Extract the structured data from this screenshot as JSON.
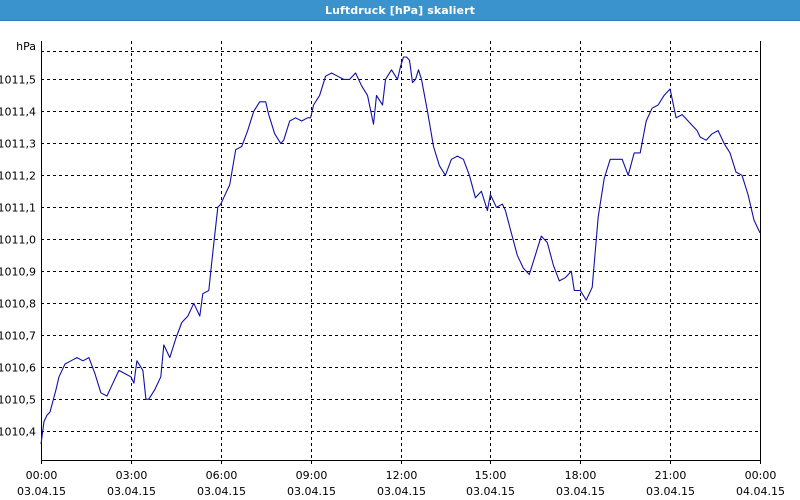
{
  "window": {
    "title": "Luftdruck [hPa] skaliert"
  },
  "colors": {
    "title_bar": "#3a93cc",
    "title_text": "#ffffff",
    "line": "#1010a8",
    "grid": "#000000",
    "axis": "#000000"
  },
  "chart_data": {
    "type": "line",
    "title": "Luftdruck [hPa] skaliert",
    "ylabel": "hPa",
    "xlabel": "",
    "x_range": [
      "03.04.15 00:00",
      "04.04.15 00:00"
    ],
    "ylim": [
      1010.31,
      1011.62
    ],
    "grid": true,
    "grid_style": "dashed",
    "legend": "none",
    "y_ticks": [
      {
        "value": 1010.4,
        "label": "1010,4"
      },
      {
        "value": 1010.5,
        "label": "1010,5"
      },
      {
        "value": 1010.6,
        "label": "1010,6"
      },
      {
        "value": 1010.7,
        "label": "1010,7"
      },
      {
        "value": 1010.8,
        "label": "1010,8"
      },
      {
        "value": 1010.9,
        "label": "1010,9"
      },
      {
        "value": 1011.0,
        "label": "1011,0"
      },
      {
        "value": 1011.1,
        "label": "1011,1"
      },
      {
        "value": 1011.2,
        "label": "1011,2"
      },
      {
        "value": 1011.3,
        "label": "1011,3"
      },
      {
        "value": 1011.4,
        "label": "1011,4"
      },
      {
        "value": 1011.5,
        "label": "1011,5"
      }
    ],
    "x_ticks": [
      {
        "hour": 0,
        "time": "00:00",
        "date": "03.04.15"
      },
      {
        "hour": 3,
        "time": "03:00",
        "date": "03.04.15"
      },
      {
        "hour": 6,
        "time": "06:00",
        "date": "03.04.15"
      },
      {
        "hour": 9,
        "time": "09:00",
        "date": "03.04.15"
      },
      {
        "hour": 12,
        "time": "12:00",
        "date": "03.04.15"
      },
      {
        "hour": 15,
        "time": "15:00",
        "date": "03.04.15"
      },
      {
        "hour": 18,
        "time": "18:00",
        "date": "03.04.15"
      },
      {
        "hour": 21,
        "time": "21:00",
        "date": "03.04.15"
      },
      {
        "hour": 24,
        "time": "00:00",
        "date": "04.04.15"
      }
    ],
    "series": [
      {
        "hours": [
          0.0,
          0.1,
          0.2,
          0.3,
          0.5,
          0.6,
          0.8,
          1.0,
          1.2,
          1.4,
          1.6,
          1.8,
          2.0,
          2.2,
          2.4,
          2.6,
          2.8,
          3.0,
          3.1,
          3.2,
          3.4,
          3.5,
          3.6,
          3.8,
          4.0,
          4.1,
          4.3,
          4.5,
          4.7,
          4.9,
          5.1,
          5.3,
          5.4,
          5.6,
          5.7,
          5.9,
          6.0,
          6.1,
          6.3,
          6.5,
          6.7,
          6.9,
          7.1,
          7.3,
          7.5,
          7.6,
          7.8,
          8.0,
          8.1,
          8.3,
          8.5,
          8.7,
          8.9,
          9.0,
          9.1,
          9.3,
          9.5,
          9.7,
          9.9,
          10.1,
          10.3,
          10.5,
          10.7,
          10.9,
          11.1,
          11.2,
          11.4,
          11.5,
          11.7,
          11.9,
          12.0,
          12.1,
          12.2,
          12.3,
          12.4,
          12.5,
          12.6,
          12.7,
          12.9,
          13.1,
          13.3,
          13.5,
          13.7,
          13.9,
          14.1,
          14.3,
          14.5,
          14.7,
          14.9,
          15.0,
          15.2,
          15.4,
          15.5,
          15.7,
          15.9,
          16.1,
          16.3,
          16.5,
          16.7,
          16.9,
          17.1,
          17.3,
          17.5,
          17.7,
          17.8,
          18.0,
          18.2,
          18.4,
          18.6,
          18.8,
          19.0,
          19.2,
          19.4,
          19.6,
          19.8,
          20.0,
          20.2,
          20.4,
          20.6,
          20.8,
          21.0,
          21.2,
          21.4,
          21.5,
          21.7,
          21.9,
          22.0,
          22.2,
          22.4,
          22.6,
          22.8,
          23.0,
          23.2,
          23.4,
          23.6,
          23.8,
          24.0
        ],
        "values": [
          1010.36,
          1010.43,
          1010.45,
          1010.46,
          1010.53,
          1010.57,
          1010.61,
          1010.62,
          1010.63,
          1010.62,
          1010.63,
          1010.58,
          1010.52,
          1010.51,
          1010.55,
          1010.59,
          1010.58,
          1010.57,
          1010.55,
          1010.62,
          1010.59,
          1010.5,
          1010.5,
          1010.53,
          1010.57,
          1010.67,
          1010.63,
          1010.69,
          1010.74,
          1010.76,
          1010.8,
          1010.76,
          1010.83,
          1010.84,
          1010.93,
          1011.1,
          1011.11,
          1011.13,
          1011.17,
          1011.28,
          1011.29,
          1011.34,
          1011.4,
          1011.43,
          1011.43,
          1011.39,
          1011.33,
          1011.3,
          1011.31,
          1011.37,
          1011.38,
          1011.37,
          1011.38,
          1011.38,
          1011.42,
          1011.45,
          1011.51,
          1011.52,
          1011.51,
          1011.5,
          1011.5,
          1011.52,
          1011.48,
          1011.45,
          1011.36,
          1011.45,
          1011.42,
          1011.5,
          1011.53,
          1011.5,
          1011.54,
          1011.57,
          1011.57,
          1011.56,
          1011.49,
          1011.5,
          1011.53,
          1011.5,
          1011.4,
          1011.29,
          1011.23,
          1011.2,
          1011.25,
          1011.26,
          1011.25,
          1011.2,
          1011.13,
          1011.15,
          1011.09,
          1011.14,
          1011.1,
          1011.11,
          1011.09,
          1011.02,
          1010.95,
          1010.91,
          1010.89,
          1010.95,
          1011.01,
          1010.99,
          1010.92,
          1010.87,
          1010.88,
          1010.9,
          1010.84,
          1010.84,
          1010.81,
          1010.85,
          1011.07,
          1011.19,
          1011.25,
          1011.25,
          1011.25,
          1011.2,
          1011.27,
          1011.27,
          1011.37,
          1011.41,
          1011.42,
          1011.45,
          1011.47,
          1011.38,
          1011.39,
          1011.38,
          1011.36,
          1011.34,
          1011.32,
          1011.31,
          1011.33,
          1011.34,
          1011.3,
          1011.27,
          1011.21,
          1011.2,
          1011.14,
          1011.06,
          1011.02
        ]
      }
    ]
  }
}
